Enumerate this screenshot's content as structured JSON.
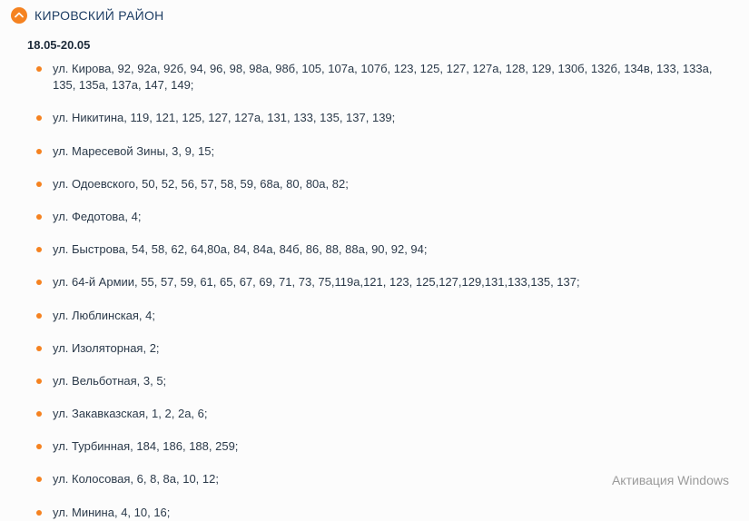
{
  "colors": {
    "accent": "#f58220",
    "title": "#1d3d63",
    "text": "#2b3a4a",
    "watermark": "#8a8a8a",
    "background": "#fcfcfc"
  },
  "section": {
    "title": "КИРОВСКИЙ РАЙОН",
    "date_range": "18.05-20.05"
  },
  "addresses": [
    "ул. Кирова, 92, 92а, 92б, 94, 96, 98, 98а, 98б, 105, 107а, 107б, 123, 125, 127, 127а, 128, 129, 130б, 132б, 134в, 133, 133а, 135, 135а, 137а, 147, 149;",
    "ул. Никитина, 119, 121, 125, 127, 127а, 131, 133, 135, 137, 139;",
    "ул. Маресевой Зины, 3, 9, 15;",
    "ул. Одоевского, 50, 52, 56, 57, 58, 59, 68а, 80, 80а, 82;",
    "ул. Федотова, 4;",
    "ул. Быстрова, 54, 58, 62, 64,80а, 84, 84а, 84б, 86, 88, 88а, 90, 92, 94;",
    "ул. 64-й Армии, 55, 57, 59, 61, 65, 67, 69, 71, 73, 75,119а,121, 123, 125,127,129,131,133,135, 137;",
    "ул. Люблинская, 4;",
    "ул. Изоляторная, 2;",
    "ул. Вельботная, 3, 5;",
    "ул. Закавказская, 1, 2, 2а, 6;",
    "ул. Турбинная, 184, 186, 188, 259;",
    "ул. Колосовая, 6, 8, 8а, 10, 12;",
    "ул. Минина, 4, 10, 16;"
  ],
  "watermark": "Активация Windows"
}
